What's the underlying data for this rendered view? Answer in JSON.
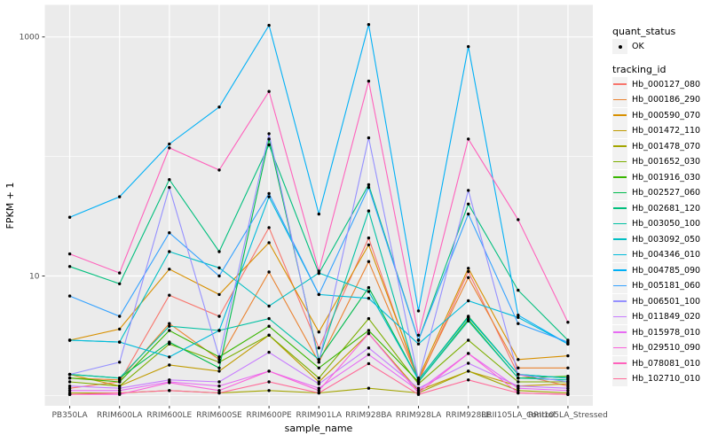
{
  "y_axis": {
    "label": "FPKM + 1",
    "ticks": [
      {
        "label": "1000",
        "value": 1000
      },
      {
        "label": "10",
        "value": 10
      }
    ]
  },
  "x_axis": {
    "label": "sample_name"
  },
  "legend": {
    "quant_status_title": "quant_status",
    "quant_status_value": "OK",
    "quant_status_marker": "point-icon",
    "tracking_title": "tracking_id"
  },
  "chart_data": {
    "type": "line",
    "title": "",
    "xlabel": "sample_name",
    "ylabel": "FPKM + 1",
    "y_scale": "log10",
    "ylim": [
      0.79,
      1870
    ],
    "grid": "on",
    "legend_position": "right",
    "panel_background": "#EBEBEB",
    "gridline_color": "#FFFFFF",
    "point_color": "#000000",
    "y_major_gridlines": [
      10,
      1000
    ],
    "y_minor_gridlines": [
      1,
      100
    ],
    "x_categories": [
      "PB350LA",
      "RRIM600LA",
      "RRIM600LE",
      "RRIM600SE",
      "RRIM600PE",
      "RRIM901LA",
      "RRIM928BA",
      "RRIM928LA",
      "RRIM928LE",
      "RRII105LA_Control",
      "RRII105LA_Stressed"
    ],
    "series": [
      {
        "name": "Hb_000127_080",
        "color": "#F8766D",
        "values": [
          1.15,
          1.3,
          6.9,
          4.6,
          25.4,
          2.5,
          20.8,
          1.3,
          10.9,
          1.5,
          1.2
        ]
      },
      {
        "name": "Hb_000186_290",
        "color": "#EA8331",
        "values": [
          1.4,
          1.35,
          4.0,
          2.0,
          10.8,
          1.9,
          13.2,
          1.35,
          9.7,
          1.7,
          1.7
        ]
      },
      {
        "name": "Hb_000590_070",
        "color": "#D89000",
        "values": [
          2.9,
          3.6,
          11.4,
          7.0,
          19.0,
          3.4,
          18.2,
          1.4,
          11.6,
          2.0,
          2.15
        ]
      },
      {
        "name": "Hb_001472_110",
        "color": "#C09B00",
        "values": [
          1.5,
          1.2,
          1.8,
          1.6,
          3.2,
          1.3,
          3.3,
          1.1,
          1.6,
          1.2,
          1.25
        ]
      },
      {
        "name": "Hb_001478_070",
        "color": "#A3A500",
        "values": [
          1.05,
          1.05,
          1.1,
          1.05,
          1.1,
          1.05,
          1.15,
          1.05,
          1.6,
          1.1,
          1.05
        ]
      },
      {
        "name": "Hb_001652_030",
        "color": "#7CAE00",
        "values": [
          1.3,
          1.2,
          2.7,
          1.9,
          3.2,
          1.4,
          4.4,
          1.25,
          2.9,
          1.3,
          1.3
        ]
      },
      {
        "name": "Hb_001916_030",
        "color": "#39B600",
        "values": [
          1.4,
          1.3,
          3.5,
          2.1,
          3.8,
          1.7,
          3.5,
          1.3,
          4.3,
          1.4,
          1.45
        ]
      },
      {
        "name": "Hb_002527_060",
        "color": "#00BB4E",
        "values": [
          1.5,
          1.4,
          2.8,
          1.7,
          140,
          2.0,
          8.0,
          1.35,
          4.6,
          1.5,
          1.4
        ]
      },
      {
        "name": "Hb_002681_120",
        "color": "#00BF7D",
        "values": [
          12,
          8.6,
          64,
          16,
          125,
          10.5,
          58,
          2.9,
          40,
          7.6,
          2.9
        ]
      },
      {
        "name": "Hb_003050_100",
        "color": "#00C1A3",
        "values": [
          1.5,
          1.4,
          3.8,
          3.5,
          4.4,
          2.0,
          35,
          1.3,
          4.2,
          1.4,
          1.35
        ]
      },
      {
        "name": "Hb_003092_050",
        "color": "#00BFC4",
        "values": [
          2.9,
          2.8,
          16,
          11.7,
          5.6,
          10.6,
          7.4,
          1.35,
          4.5,
          1.5,
          1.4
        ]
      },
      {
        "name": "Hb_004346_010",
        "color": "#00BBDB",
        "values": [
          2.9,
          2.8,
          2.1,
          3.5,
          46,
          7.0,
          6.5,
          2.7,
          6.2,
          4.5,
          2.7
        ]
      },
      {
        "name": "Hb_004785_090",
        "color": "#00B0F6",
        "values": [
          31,
          46,
          127,
          259,
          1250,
          33,
          1270,
          5.1,
          830,
          4.7,
          2.7
        ]
      },
      {
        "name": "Hb_005181_060",
        "color": "#35A2FF",
        "values": [
          6.8,
          4.6,
          23,
          10,
          49,
          7.0,
          55,
          2.9,
          33,
          4.0,
          2.8
        ]
      },
      {
        "name": "Hb_006501_100",
        "color": "#9590FF",
        "values": [
          1.5,
          1.9,
          55,
          2.1,
          155,
          1.9,
          143,
          1.35,
          52,
          1.5,
          1.3
        ]
      },
      {
        "name": "Hb_011849_020",
        "color": "#C77CFF",
        "values": [
          1.2,
          1.15,
          1.35,
          1.3,
          2.3,
          1.25,
          2.5,
          1.15,
          1.86,
          1.2,
          1.15
        ]
      },
      {
        "name": "Hb_015978_010",
        "color": "#E76BF3",
        "values": [
          1.1,
          1.1,
          1.3,
          1.2,
          1.6,
          1.15,
          2.2,
          1.1,
          2.25,
          1.15,
          1.1
        ]
      },
      {
        "name": "Hb_029510_090",
        "color": "#FA62DB",
        "values": [
          1.02,
          1.02,
          1.28,
          1.1,
          1.6,
          1.1,
          3.3,
          1.05,
          2.25,
          1.05,
          1.02
        ]
      },
      {
        "name": "Hb_078081_010",
        "color": "#FF62BC",
        "values": [
          15.3,
          10.6,
          118,
          77,
          350,
          11,
          427,
          3.2,
          140,
          29.6,
          4.1
        ]
      },
      {
        "name": "Hb_102710_010",
        "color": "#FF6A98",
        "values": [
          1.02,
          1.05,
          1.1,
          1.05,
          1.3,
          1.05,
          1.85,
          1.02,
          1.35,
          1.05,
          1.02
        ]
      }
    ]
  }
}
